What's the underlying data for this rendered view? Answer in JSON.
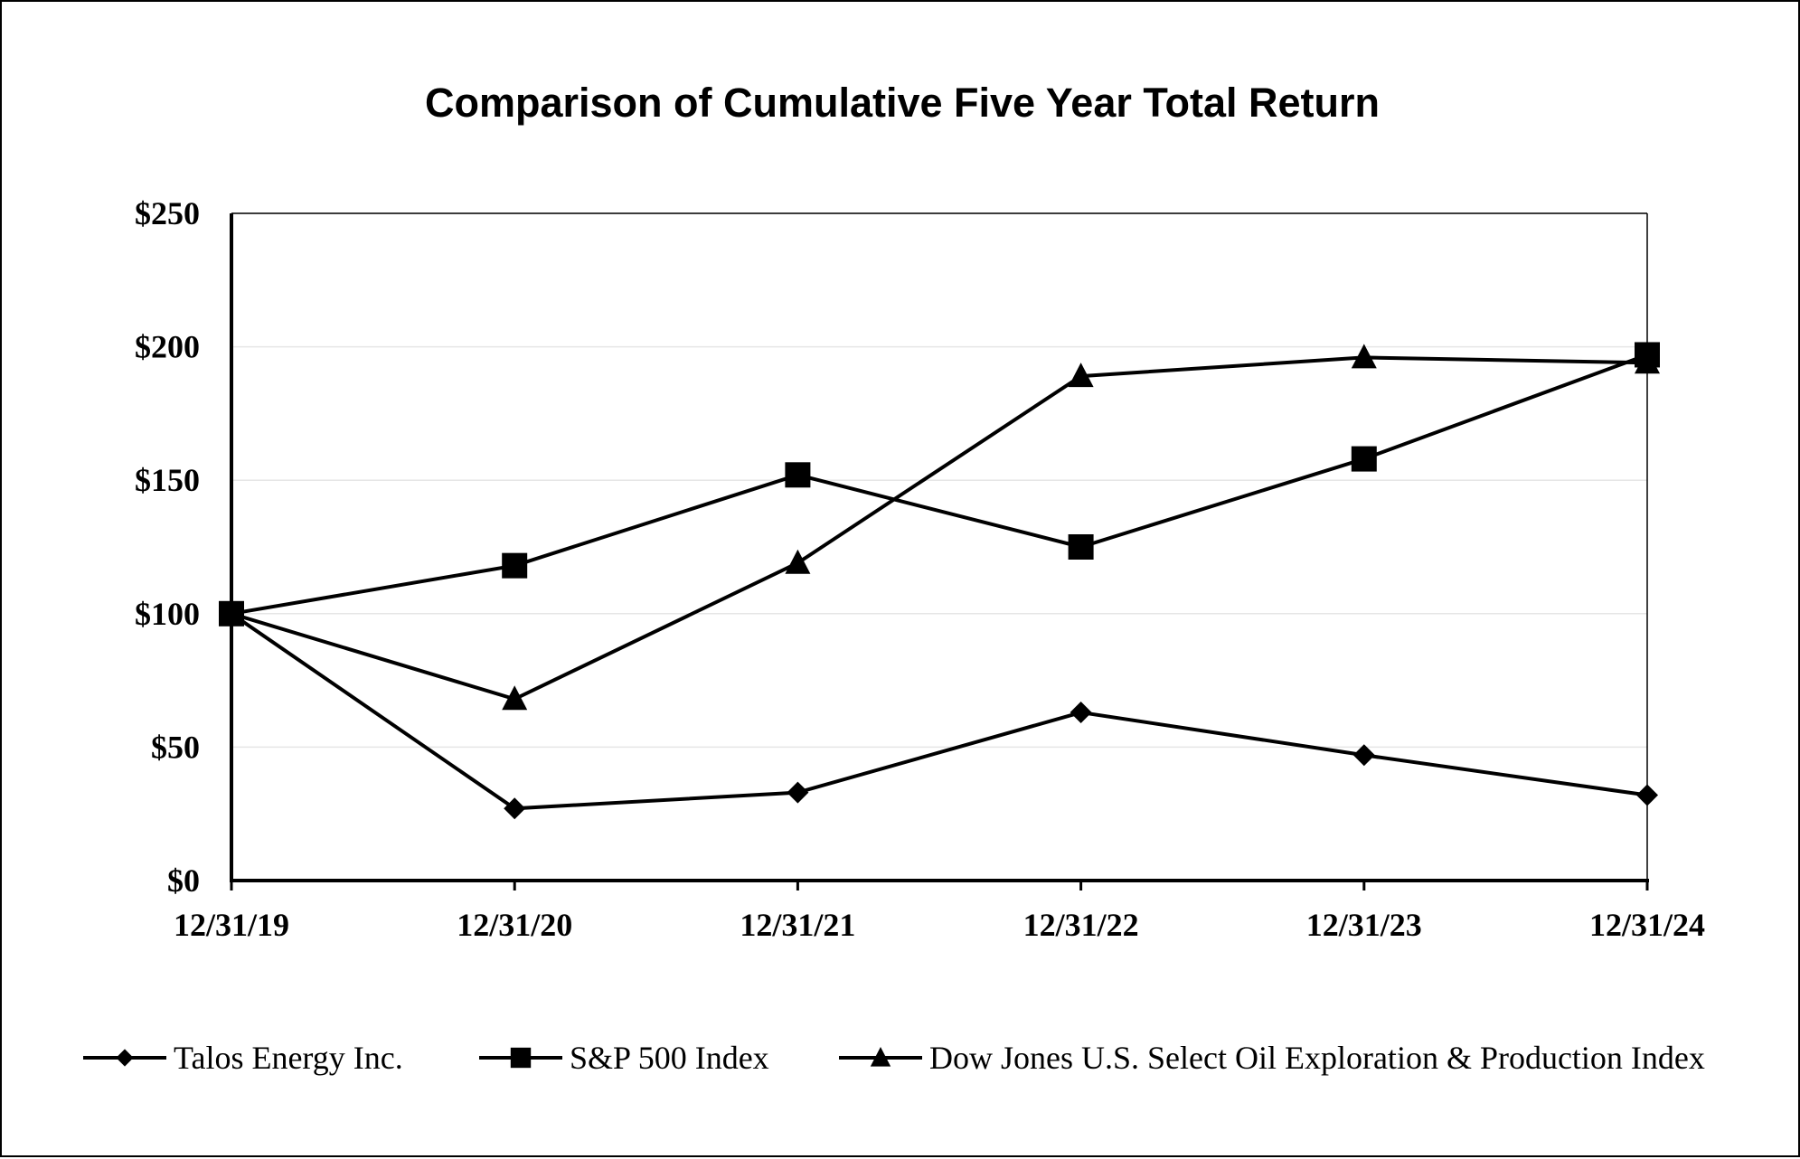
{
  "chart_data": {
    "type": "line",
    "title": "Comparison of Cumulative Five Year Total Return",
    "xlabel": "",
    "ylabel": "",
    "categories": [
      "12/31/19",
      "12/31/20",
      "12/31/21",
      "12/31/22",
      "12/31/23",
      "12/31/24"
    ],
    "ylim": [
      0,
      250
    ],
    "yticks": [
      0,
      50,
      100,
      150,
      200,
      250
    ],
    "ytick_labels": [
      "$0",
      "$50",
      "$100",
      "$150",
      "$200",
      "$250"
    ],
    "grid": true,
    "legend_position": "bottom",
    "series": [
      {
        "name": "Talos Energy Inc.",
        "marker": "diamond",
        "values": [
          100,
          27,
          33,
          63,
          47,
          32
        ]
      },
      {
        "name": "S&P 500 Index",
        "marker": "square",
        "values": [
          100,
          118,
          152,
          125,
          158,
          197
        ]
      },
      {
        "name": "Dow Jones U.S. Select Oil Exploration & Production Index",
        "marker": "triangle",
        "values": [
          100,
          68,
          119,
          189,
          196,
          194
        ]
      }
    ],
    "colors": {
      "line": "#000000",
      "grid": "#e6e6e6",
      "background": "#ffffff"
    }
  }
}
